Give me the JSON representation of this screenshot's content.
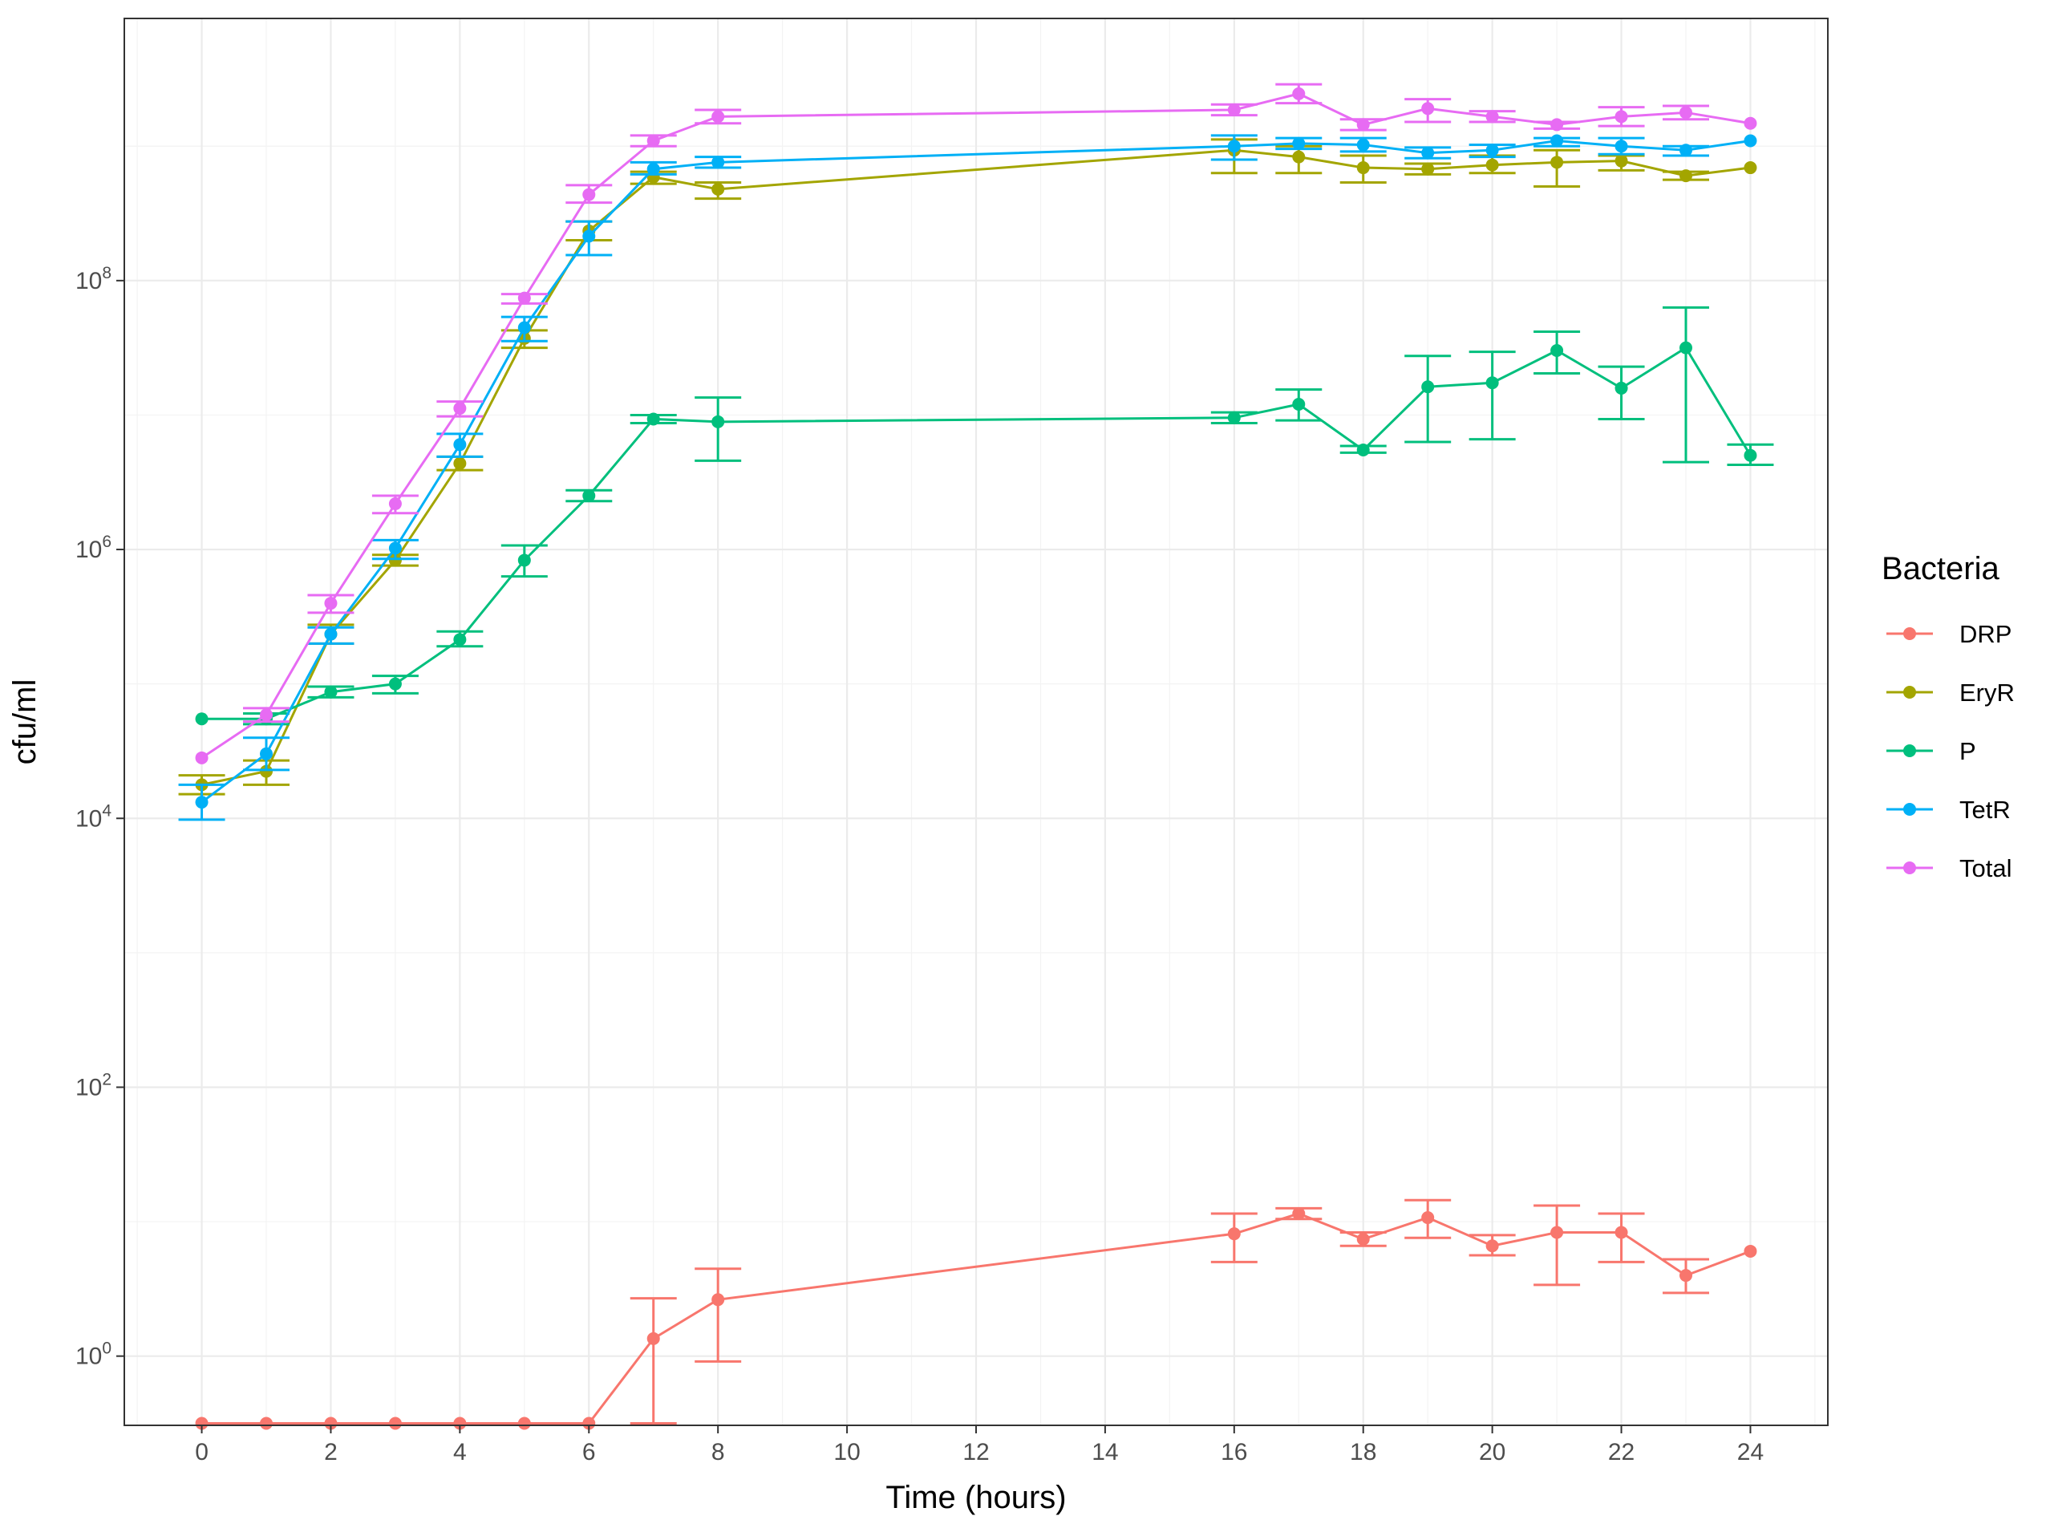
{
  "chart_data": {
    "type": "line",
    "title": "",
    "xlabel": "Time (hours)",
    "ylabel": "cfu/ml",
    "yscale": "log10",
    "xlim": [
      -1.2,
      25.2
    ],
    "ylim_log10": [
      -0.515,
      9.95
    ],
    "x_ticks": [
      0,
      2,
      4,
      6,
      8,
      10,
      12,
      14,
      16,
      18,
      20,
      22,
      24
    ],
    "y_ticks": [
      {
        "exp": 0,
        "base": "10",
        "sup": "0"
      },
      {
        "exp": 2,
        "base": "10",
        "sup": "2"
      },
      {
        "exp": 4,
        "base": "10",
        "sup": "4"
      },
      {
        "exp": 6,
        "base": "10",
        "sup": "6"
      },
      {
        "exp": 8,
        "base": "10",
        "sup": "8"
      }
    ],
    "grid": true,
    "legend": {
      "title": "Bacteria",
      "position": "right"
    },
    "x": [
      0,
      1,
      2,
      3,
      4,
      5,
      6,
      7,
      8,
      16,
      17,
      18,
      19,
      20,
      21,
      22,
      23,
      24
    ],
    "series": [
      {
        "name": "DRP",
        "color": "#F8766D",
        "log10_values": [
          -0.5,
          -0.5,
          -0.5,
          -0.5,
          -0.5,
          -0.5,
          -0.5,
          0.13,
          0.42,
          0.91,
          1.06,
          0.87,
          1.03,
          0.82,
          0.92,
          0.92,
          0.6,
          0.78
        ],
        "log10_err_low": [
          null,
          null,
          null,
          null,
          null,
          null,
          null,
          -0.5,
          -0.04,
          0.7,
          1.02,
          0.82,
          0.88,
          0.75,
          0.53,
          0.7,
          0.47,
          null
        ],
        "log10_err_high": [
          null,
          null,
          null,
          null,
          null,
          null,
          null,
          0.43,
          0.65,
          1.06,
          1.1,
          0.92,
          1.16,
          0.9,
          1.12,
          1.06,
          0.72,
          null
        ]
      },
      {
        "name": "EryR",
        "color": "#A3A500",
        "log10_values": [
          4.25,
          4.35,
          5.37,
          5.92,
          6.64,
          7.57,
          8.37,
          8.77,
          8.68,
          8.97,
          8.92,
          8.84,
          8.83,
          8.86,
          8.88,
          8.89,
          8.78,
          8.84
        ],
        "log10_err_low": [
          4.18,
          4.25,
          5.3,
          5.88,
          6.59,
          7.5,
          8.3,
          8.72,
          8.61,
          8.8,
          8.8,
          8.73,
          8.79,
          8.8,
          8.7,
          8.82,
          8.75,
          null
        ],
        "log10_err_high": [
          4.32,
          4.43,
          5.44,
          5.96,
          6.69,
          7.63,
          8.44,
          8.81,
          8.73,
          9.05,
          9.0,
          8.93,
          8.87,
          8.93,
          8.97,
          8.93,
          8.81,
          null
        ]
      },
      {
        "name": "P",
        "color": "#00BF7D",
        "log10_values": [
          4.74,
          4.74,
          4.94,
          5.0,
          5.33,
          5.92,
          6.4,
          6.97,
          6.95,
          6.98,
          7.08,
          6.74,
          7.21,
          7.24,
          7.48,
          7.2,
          7.5,
          6.7
        ],
        "log10_err_low": [
          null,
          4.7,
          4.9,
          4.93,
          5.28,
          5.8,
          6.36,
          6.94,
          6.66,
          6.94,
          6.96,
          6.72,
          6.8,
          6.82,
          7.31,
          6.97,
          6.65,
          6.63
        ],
        "log10_err_high": [
          null,
          4.78,
          4.98,
          5.06,
          5.39,
          6.03,
          6.44,
          7.0,
          7.13,
          7.02,
          7.19,
          6.77,
          7.44,
          7.47,
          7.62,
          7.36,
          7.8,
          6.78
        ]
      },
      {
        "name": "TetR",
        "color": "#00B0F6",
        "log10_values": [
          4.12,
          4.48,
          5.37,
          6.01,
          6.78,
          7.65,
          8.33,
          8.83,
          8.88,
          9.0,
          9.02,
          9.01,
          8.95,
          8.97,
          9.04,
          9.0,
          8.97,
          9.04
        ],
        "log10_err_low": [
          3.99,
          4.36,
          5.3,
          5.93,
          6.69,
          7.55,
          8.19,
          8.79,
          8.84,
          8.9,
          8.98,
          8.96,
          8.91,
          8.92,
          9.0,
          8.94,
          8.93,
          null
        ],
        "log10_err_high": [
          4.25,
          4.6,
          5.42,
          6.07,
          6.86,
          7.73,
          8.44,
          8.88,
          8.92,
          9.08,
          9.06,
          9.06,
          8.99,
          9.01,
          9.06,
          9.06,
          9.0,
          null
        ]
      },
      {
        "name": "Total",
        "color": "#E76BF3",
        "log10_values": [
          4.45,
          4.77,
          5.6,
          6.34,
          7.05,
          7.87,
          8.64,
          9.04,
          9.22,
          9.27,
          9.39,
          9.16,
          9.28,
          9.22,
          9.16,
          9.22,
          9.25,
          9.17
        ],
        "log10_err_low": [
          null,
          4.72,
          5.53,
          6.27,
          6.99,
          7.83,
          8.58,
          9.0,
          9.17,
          9.23,
          9.32,
          9.12,
          9.18,
          9.18,
          9.13,
          9.15,
          9.2,
          null
        ],
        "log10_err_high": [
          null,
          4.82,
          5.66,
          6.4,
          7.1,
          7.9,
          8.71,
          9.08,
          9.27,
          9.31,
          9.46,
          9.2,
          9.35,
          9.26,
          9.18,
          9.29,
          9.3,
          null
        ]
      }
    ]
  }
}
